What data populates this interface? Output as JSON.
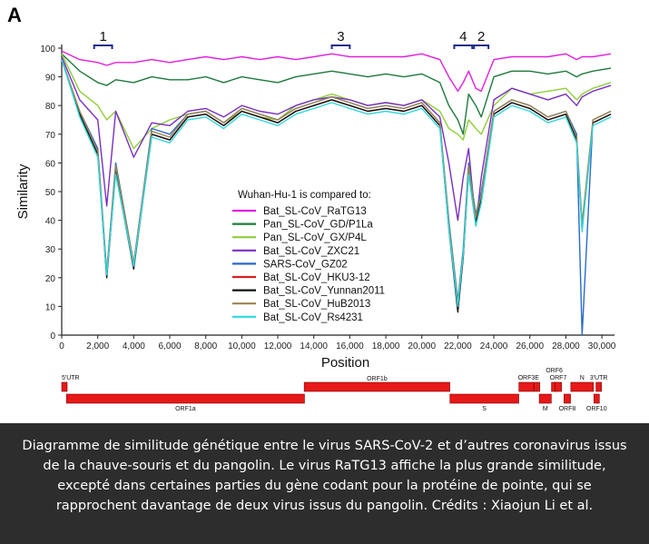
{
  "figure": {
    "panel_letter": "A",
    "regions": [
      "1",
      "3",
      "4",
      "2"
    ],
    "legend_title": "Wuhan-Hu-1 is compared to:"
  },
  "chart_data": {
    "type": "line",
    "xlabel": "Position",
    "ylabel": "Similarity",
    "xlim": [
      0,
      30500
    ],
    "ylim": [
      0,
      100
    ],
    "x_ticks": [
      "0",
      "2,000",
      "4,000",
      "6,000",
      "8,000",
      "10,000",
      "12,000",
      "14,000",
      "16,000",
      "18,000",
      "20,000",
      "22,000",
      "24,000",
      "26,000",
      "28,000",
      "30,000"
    ],
    "y_ticks": [
      "0",
      "10",
      "20",
      "30",
      "40",
      "50",
      "60",
      "70",
      "80",
      "90",
      "100"
    ],
    "grid": false,
    "legend_position": "center",
    "x": [
      0,
      1000,
      2000,
      2500,
      3000,
      4000,
      5000,
      6000,
      7000,
      8000,
      9000,
      10000,
      11000,
      12000,
      13000,
      14000,
      15000,
      16000,
      17000,
      18000,
      19000,
      20000,
      21000,
      21500,
      22000,
      22300,
      22600,
      23000,
      23300,
      24000,
      25000,
      26000,
      27000,
      28000,
      28600,
      28900,
      29500,
      30500
    ],
    "series": [
      {
        "name": "Bat_SL-CoV_RaTG13",
        "color": "#e020e0",
        "values": [
          99,
          96,
          95,
          94,
          95,
          95,
          96,
          95,
          96,
          97,
          96,
          97,
          96,
          97,
          96,
          97,
          98,
          97,
          97,
          97,
          97,
          98,
          96,
          90,
          85,
          88,
          92,
          86,
          85,
          96,
          97,
          97,
          97,
          98,
          96,
          97,
          97,
          98
        ]
      },
      {
        "name": "Pan_SL-CoV_GD/P1La",
        "color": "#1e7a3c",
        "values": [
          98,
          92,
          88,
          87,
          89,
          88,
          90,
          89,
          89,
          90,
          88,
          90,
          89,
          88,
          90,
          91,
          92,
          91,
          90,
          91,
          90,
          91,
          88,
          80,
          75,
          70,
          84,
          80,
          76,
          90,
          92,
          92,
          91,
          92,
          90,
          91,
          92,
          93
        ]
      },
      {
        "name": "Pan_SL-CoV_GX/P4L",
        "color": "#8ecf3a",
        "values": [
          98,
          85,
          80,
          75,
          78,
          65,
          72,
          75,
          77,
          78,
          74,
          78,
          76,
          75,
          80,
          82,
          84,
          82,
          80,
          81,
          80,
          82,
          78,
          72,
          70,
          68,
          75,
          72,
          70,
          80,
          86,
          84,
          85,
          86,
          82,
          84,
          86,
          88
        ]
      },
      {
        "name": "Bat_SL-CoV_ZXC21",
        "color": "#7a2fc0",
        "values": [
          97,
          82,
          75,
          45,
          78,
          62,
          74,
          73,
          78,
          79,
          76,
          80,
          78,
          77,
          80,
          82,
          83,
          82,
          80,
          81,
          80,
          82,
          76,
          60,
          40,
          55,
          65,
          38,
          55,
          82,
          86,
          84,
          82,
          84,
          80,
          83,
          85,
          87
        ]
      },
      {
        "name": "SARS-CoV_GZ02",
        "color": "#2a6ac8",
        "values": [
          96,
          78,
          65,
          22,
          60,
          25,
          72,
          70,
          77,
          78,
          74,
          79,
          77,
          75,
          79,
          81,
          83,
          81,
          79,
          80,
          79,
          81,
          74,
          40,
          12,
          30,
          60,
          42,
          50,
          78,
          82,
          80,
          76,
          78,
          70,
          0,
          75,
          78
        ]
      },
      {
        "name": "Bat_SL-CoV_HKU3-12",
        "color": "#d82020",
        "values": [
          96,
          77,
          64,
          21,
          58,
          24,
          70,
          68,
          76,
          77,
          73,
          78,
          76,
          74,
          78,
          80,
          82,
          80,
          78,
          79,
          78,
          80,
          73,
          38,
          9,
          28,
          58,
          40,
          48,
          77,
          81,
          79,
          75,
          77,
          68,
          38,
          74,
          77
        ]
      },
      {
        "name": "Bat_SL-CoV_Yunnan2011",
        "color": "#111111",
        "values": [
          96,
          77,
          63,
          20,
          57,
          23,
          70,
          68,
          76,
          77,
          73,
          78,
          76,
          74,
          78,
          80,
          82,
          80,
          78,
          79,
          78,
          80,
          73,
          37,
          8,
          27,
          57,
          39,
          47,
          77,
          81,
          79,
          75,
          77,
          68,
          37,
          74,
          77
        ]
      },
      {
        "name": "Bat_SL-CoV_HuB2013",
        "color": "#9a8550",
        "values": [
          96,
          78,
          64,
          22,
          59,
          25,
          71,
          69,
          77,
          78,
          74,
          79,
          77,
          75,
          79,
          81,
          83,
          81,
          79,
          80,
          79,
          81,
          74,
          39,
          11,
          29,
          59,
          41,
          49,
          78,
          82,
          80,
          76,
          78,
          69,
          39,
          75,
          78
        ]
      },
      {
        "name": "Bat_SL-CoV_Rs4231",
        "color": "#30d8e0",
        "values": [
          96,
          76,
          62,
          21,
          56,
          24,
          69,
          67,
          75,
          76,
          72,
          77,
          75,
          73,
          77,
          79,
          81,
          79,
          77,
          78,
          77,
          79,
          72,
          37,
          10,
          28,
          56,
          38,
          46,
          76,
          80,
          78,
          74,
          76,
          67,
          36,
          73,
          76
        ]
      }
    ]
  },
  "genome_map": [
    {
      "label": "5'UTR",
      "start": 0,
      "end": 265,
      "row": "top"
    },
    {
      "label": "ORF1a",
      "start": 266,
      "end": 13483,
      "row": "bottom"
    },
    {
      "label": "ORF1b",
      "start": 13468,
      "end": 21555,
      "row": "top"
    },
    {
      "label": "S",
      "start": 21563,
      "end": 25384,
      "row": "bottom"
    },
    {
      "label": "ORF3",
      "start": 25393,
      "end": 26220,
      "row": "top"
    },
    {
      "label": "E",
      "start": 26245,
      "end": 26472,
      "row": "top"
    },
    {
      "label": "M",
      "start": 26523,
      "end": 27191,
      "row": "bottom"
    },
    {
      "label": "ORF6",
      "start": 27202,
      "end": 27387,
      "row": "top"
    },
    {
      "label": "ORF7",
      "start": 27394,
      "end": 27759,
      "row": "top"
    },
    {
      "label": "ORF8",
      "start": 27894,
      "end": 28259,
      "row": "bottom"
    },
    {
      "label": "N",
      "start": 28274,
      "end": 29533,
      "row": "top"
    },
    {
      "label": "ORF10",
      "start": 29558,
      "end": 29674,
      "row": "bottom"
    },
    {
      "label": "3'UTR",
      "start": 29675,
      "end": 29903,
      "row": "top"
    }
  ],
  "caption": "Diagramme de similitude génétique entre le virus SARS-CoV-2 et d’autres coronavirus issus de la chauve-souris et du pangolin. Le virus RaTG13 affiche la plus grande similitude, excepté dans certaines parties du gène codant pour la protéine de pointe, qui se rapprochent davantage de deux virus issus du pangolin. Crédits : Xiaojun Li et al."
}
